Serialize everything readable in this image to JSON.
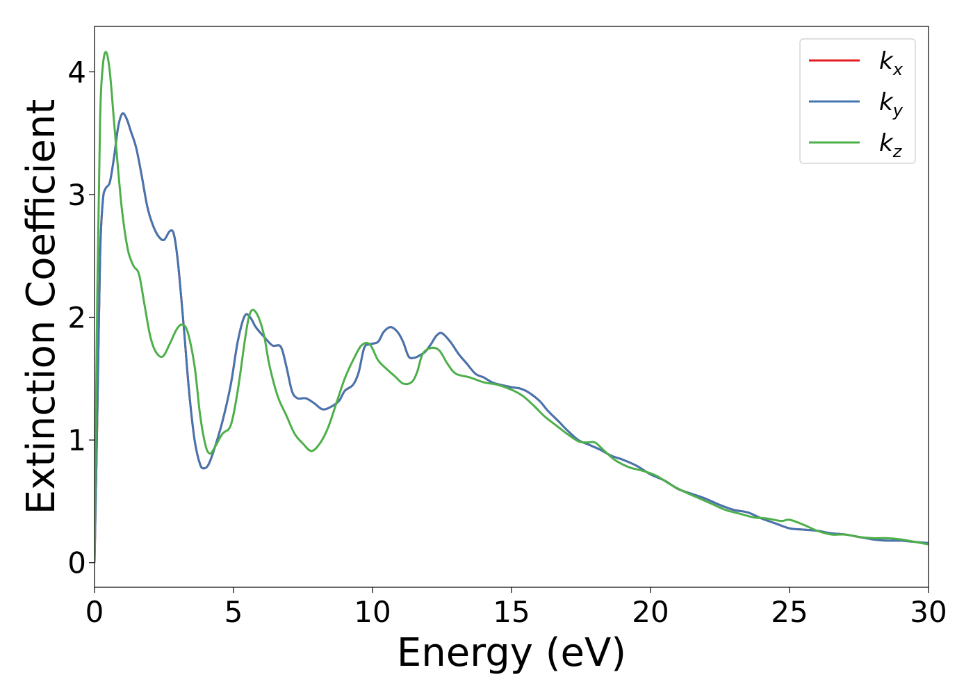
{
  "chart_data": {
    "type": "line",
    "title": "",
    "xlabel": "Energy (eV)",
    "ylabel": "Extinction Coefficient",
    "xlim": [
      0,
      30
    ],
    "ylim": [
      -0.2,
      4.37
    ],
    "xticks": [
      0,
      5,
      10,
      15,
      20,
      25,
      30
    ],
    "yticks": [
      0,
      1,
      2,
      3,
      4
    ],
    "grid": false,
    "legend_position": "top-right",
    "series": [
      {
        "name": "k_x",
        "label_main": "k",
        "label_sub": "x",
        "color": "#e41a1c",
        "points": [
          [
            0,
            0
          ],
          [
            0.1,
            1.2
          ],
          [
            0.2,
            2.5
          ],
          [
            0.3,
            2.95
          ],
          [
            0.4,
            3.05
          ],
          [
            0.55,
            3.1
          ],
          [
            0.7,
            3.3
          ],
          [
            0.85,
            3.55
          ],
          [
            1.0,
            3.66
          ],
          [
            1.15,
            3.62
          ],
          [
            1.3,
            3.52
          ],
          [
            1.5,
            3.38
          ],
          [
            1.7,
            3.15
          ],
          [
            1.9,
            2.9
          ],
          [
            2.1,
            2.75
          ],
          [
            2.3,
            2.66
          ],
          [
            2.5,
            2.63
          ],
          [
            2.7,
            2.7
          ],
          [
            2.85,
            2.68
          ],
          [
            3.0,
            2.45
          ],
          [
            3.2,
            1.95
          ],
          [
            3.4,
            1.4
          ],
          [
            3.6,
            1.0
          ],
          [
            3.8,
            0.8
          ],
          [
            3.95,
            0.77
          ],
          [
            4.1,
            0.8
          ],
          [
            4.3,
            0.92
          ],
          [
            4.6,
            1.15
          ],
          [
            4.9,
            1.45
          ],
          [
            5.15,
            1.8
          ],
          [
            5.4,
            2.01
          ],
          [
            5.6,
            2.0
          ],
          [
            5.8,
            1.92
          ],
          [
            6.1,
            1.84
          ],
          [
            6.4,
            1.77
          ],
          [
            6.7,
            1.76
          ],
          [
            6.9,
            1.6
          ],
          [
            7.1,
            1.4
          ],
          [
            7.3,
            1.34
          ],
          [
            7.6,
            1.34
          ],
          [
            7.9,
            1.3
          ],
          [
            8.2,
            1.25
          ],
          [
            8.5,
            1.27
          ],
          [
            8.8,
            1.32
          ],
          [
            9.0,
            1.4
          ],
          [
            9.3,
            1.45
          ],
          [
            9.5,
            1.55
          ],
          [
            9.7,
            1.75
          ],
          [
            9.9,
            1.78
          ],
          [
            10.2,
            1.8
          ],
          [
            10.4,
            1.88
          ],
          [
            10.65,
            1.92
          ],
          [
            10.9,
            1.88
          ],
          [
            11.1,
            1.8
          ],
          [
            11.3,
            1.68
          ],
          [
            11.5,
            1.67
          ],
          [
            11.7,
            1.69
          ],
          [
            11.9,
            1.72
          ],
          [
            12.1,
            1.78
          ],
          [
            12.3,
            1.85
          ],
          [
            12.5,
            1.87
          ],
          [
            12.8,
            1.8
          ],
          [
            13.1,
            1.7
          ],
          [
            13.4,
            1.62
          ],
          [
            13.7,
            1.54
          ],
          [
            14.0,
            1.51
          ],
          [
            14.3,
            1.47
          ],
          [
            14.6,
            1.45
          ],
          [
            15.0,
            1.43
          ],
          [
            15.3,
            1.42
          ],
          [
            15.6,
            1.39
          ],
          [
            16.0,
            1.32
          ],
          [
            16.3,
            1.24
          ],
          [
            16.7,
            1.15
          ],
          [
            17.0,
            1.08
          ],
          [
            17.4,
            1.0
          ],
          [
            17.8,
            0.96
          ],
          [
            18.2,
            0.92
          ],
          [
            18.6,
            0.87
          ],
          [
            19.0,
            0.84
          ],
          [
            19.5,
            0.79
          ],
          [
            20.0,
            0.72
          ],
          [
            20.5,
            0.67
          ],
          [
            21.0,
            0.6
          ],
          [
            21.5,
            0.56
          ],
          [
            22.0,
            0.52
          ],
          [
            22.5,
            0.47
          ],
          [
            23.0,
            0.43
          ],
          [
            23.5,
            0.41
          ],
          [
            24.0,
            0.36
          ],
          [
            24.5,
            0.32
          ],
          [
            25.0,
            0.28
          ],
          [
            25.5,
            0.27
          ],
          [
            26.0,
            0.26
          ],
          [
            26.5,
            0.24
          ],
          [
            27.0,
            0.23
          ],
          [
            27.5,
            0.21
          ],
          [
            28.0,
            0.19
          ],
          [
            28.5,
            0.18
          ],
          [
            29.0,
            0.18
          ],
          [
            29.5,
            0.17
          ],
          [
            30.0,
            0.16
          ]
        ]
      },
      {
        "name": "k_y",
        "label_main": "k",
        "label_sub": "y",
        "color": "#4475b0",
        "points": [
          [
            0,
            0
          ],
          [
            0.1,
            1.2
          ],
          [
            0.2,
            2.5
          ],
          [
            0.3,
            2.95
          ],
          [
            0.4,
            3.05
          ],
          [
            0.55,
            3.1
          ],
          [
            0.7,
            3.3
          ],
          [
            0.85,
            3.55
          ],
          [
            1.0,
            3.66
          ],
          [
            1.15,
            3.62
          ],
          [
            1.3,
            3.52
          ],
          [
            1.5,
            3.38
          ],
          [
            1.7,
            3.15
          ],
          [
            1.9,
            2.9
          ],
          [
            2.1,
            2.75
          ],
          [
            2.3,
            2.66
          ],
          [
            2.5,
            2.63
          ],
          [
            2.7,
            2.7
          ],
          [
            2.85,
            2.68
          ],
          [
            3.0,
            2.45
          ],
          [
            3.2,
            1.95
          ],
          [
            3.4,
            1.4
          ],
          [
            3.6,
            1.0
          ],
          [
            3.8,
            0.8
          ],
          [
            3.95,
            0.77
          ],
          [
            4.1,
            0.8
          ],
          [
            4.3,
            0.92
          ],
          [
            4.6,
            1.15
          ],
          [
            4.9,
            1.45
          ],
          [
            5.15,
            1.8
          ],
          [
            5.4,
            2.01
          ],
          [
            5.6,
            2.0
          ],
          [
            5.8,
            1.92
          ],
          [
            6.1,
            1.84
          ],
          [
            6.4,
            1.77
          ],
          [
            6.7,
            1.76
          ],
          [
            6.9,
            1.6
          ],
          [
            7.1,
            1.4
          ],
          [
            7.3,
            1.34
          ],
          [
            7.6,
            1.34
          ],
          [
            7.9,
            1.3
          ],
          [
            8.2,
            1.25
          ],
          [
            8.5,
            1.27
          ],
          [
            8.8,
            1.32
          ],
          [
            9.0,
            1.4
          ],
          [
            9.3,
            1.45
          ],
          [
            9.5,
            1.55
          ],
          [
            9.7,
            1.75
          ],
          [
            9.9,
            1.78
          ],
          [
            10.2,
            1.8
          ],
          [
            10.4,
            1.88
          ],
          [
            10.65,
            1.92
          ],
          [
            10.9,
            1.88
          ],
          [
            11.1,
            1.8
          ],
          [
            11.3,
            1.68
          ],
          [
            11.5,
            1.67
          ],
          [
            11.7,
            1.69
          ],
          [
            11.9,
            1.72
          ],
          [
            12.1,
            1.78
          ],
          [
            12.3,
            1.85
          ],
          [
            12.5,
            1.87
          ],
          [
            12.8,
            1.8
          ],
          [
            13.1,
            1.7
          ],
          [
            13.4,
            1.62
          ],
          [
            13.7,
            1.54
          ],
          [
            14.0,
            1.51
          ],
          [
            14.3,
            1.47
          ],
          [
            14.6,
            1.45
          ],
          [
            15.0,
            1.43
          ],
          [
            15.3,
            1.42
          ],
          [
            15.6,
            1.39
          ],
          [
            16.0,
            1.32
          ],
          [
            16.3,
            1.24
          ],
          [
            16.7,
            1.15
          ],
          [
            17.0,
            1.08
          ],
          [
            17.4,
            1.0
          ],
          [
            17.8,
            0.96
          ],
          [
            18.2,
            0.92
          ],
          [
            18.6,
            0.87
          ],
          [
            19.0,
            0.84
          ],
          [
            19.5,
            0.79
          ],
          [
            20.0,
            0.72
          ],
          [
            20.5,
            0.67
          ],
          [
            21.0,
            0.6
          ],
          [
            21.5,
            0.56
          ],
          [
            22.0,
            0.52
          ],
          [
            22.5,
            0.47
          ],
          [
            23.0,
            0.43
          ],
          [
            23.5,
            0.41
          ],
          [
            24.0,
            0.36
          ],
          [
            24.5,
            0.32
          ],
          [
            25.0,
            0.28
          ],
          [
            25.5,
            0.27
          ],
          [
            26.0,
            0.26
          ],
          [
            26.5,
            0.24
          ],
          [
            27.0,
            0.23
          ],
          [
            27.5,
            0.21
          ],
          [
            28.0,
            0.19
          ],
          [
            28.5,
            0.18
          ],
          [
            29.0,
            0.18
          ],
          [
            29.5,
            0.17
          ],
          [
            30.0,
            0.16
          ]
        ]
      },
      {
        "name": "k_z",
        "label_main": "k",
        "label_sub": "z",
        "color": "#4daf4a",
        "points": [
          [
            0,
            0
          ],
          [
            0.1,
            2.2
          ],
          [
            0.2,
            3.6
          ],
          [
            0.3,
            4.05
          ],
          [
            0.42,
            4.16
          ],
          [
            0.55,
            4.0
          ],
          [
            0.7,
            3.6
          ],
          [
            0.85,
            3.2
          ],
          [
            1.0,
            2.85
          ],
          [
            1.2,
            2.55
          ],
          [
            1.4,
            2.42
          ],
          [
            1.6,
            2.35
          ],
          [
            1.8,
            2.1
          ],
          [
            2.0,
            1.85
          ],
          [
            2.2,
            1.72
          ],
          [
            2.45,
            1.68
          ],
          [
            2.7,
            1.78
          ],
          [
            2.95,
            1.9
          ],
          [
            3.15,
            1.94
          ],
          [
            3.35,
            1.88
          ],
          [
            3.6,
            1.6
          ],
          [
            3.8,
            1.2
          ],
          [
            4.0,
            0.95
          ],
          [
            4.15,
            0.89
          ],
          [
            4.3,
            0.93
          ],
          [
            4.6,
            1.05
          ],
          [
            4.9,
            1.12
          ],
          [
            5.15,
            1.4
          ],
          [
            5.4,
            1.8
          ],
          [
            5.55,
            2.0
          ],
          [
            5.7,
            2.06
          ],
          [
            5.9,
            2.0
          ],
          [
            6.1,
            1.85
          ],
          [
            6.3,
            1.6
          ],
          [
            6.6,
            1.35
          ],
          [
            6.9,
            1.2
          ],
          [
            7.2,
            1.05
          ],
          [
            7.5,
            0.97
          ],
          [
            7.8,
            0.91
          ],
          [
            8.1,
            0.97
          ],
          [
            8.4,
            1.1
          ],
          [
            8.7,
            1.3
          ],
          [
            9.0,
            1.5
          ],
          [
            9.3,
            1.65
          ],
          [
            9.6,
            1.77
          ],
          [
            9.9,
            1.78
          ],
          [
            10.2,
            1.65
          ],
          [
            10.5,
            1.58
          ],
          [
            10.8,
            1.52
          ],
          [
            11.1,
            1.46
          ],
          [
            11.4,
            1.47
          ],
          [
            11.6,
            1.55
          ],
          [
            11.8,
            1.7
          ],
          [
            12.1,
            1.75
          ],
          [
            12.4,
            1.73
          ],
          [
            12.7,
            1.62
          ],
          [
            13.0,
            1.54
          ],
          [
            13.5,
            1.51
          ],
          [
            14.0,
            1.47
          ],
          [
            14.5,
            1.45
          ],
          [
            15.0,
            1.41
          ],
          [
            15.4,
            1.36
          ],
          [
            15.8,
            1.28
          ],
          [
            16.2,
            1.19
          ],
          [
            16.6,
            1.12
          ],
          [
            17.0,
            1.05
          ],
          [
            17.4,
            0.99
          ],
          [
            17.7,
            0.98
          ],
          [
            18.0,
            0.98
          ],
          [
            18.3,
            0.92
          ],
          [
            18.7,
            0.84
          ],
          [
            19.2,
            0.78
          ],
          [
            19.7,
            0.75
          ],
          [
            20.2,
            0.71
          ],
          [
            20.7,
            0.64
          ],
          [
            21.2,
            0.58
          ],
          [
            21.7,
            0.53
          ],
          [
            22.2,
            0.48
          ],
          [
            22.7,
            0.43
          ],
          [
            23.2,
            0.4
          ],
          [
            23.7,
            0.37
          ],
          [
            24.2,
            0.36
          ],
          [
            24.7,
            0.34
          ],
          [
            25.0,
            0.35
          ],
          [
            25.5,
            0.31
          ],
          [
            26.0,
            0.26
          ],
          [
            26.5,
            0.23
          ],
          [
            27.0,
            0.23
          ],
          [
            27.5,
            0.21
          ],
          [
            28.0,
            0.2
          ],
          [
            28.5,
            0.2
          ],
          [
            29.0,
            0.19
          ],
          [
            29.5,
            0.17
          ],
          [
            30.0,
            0.15
          ]
        ]
      }
    ]
  }
}
